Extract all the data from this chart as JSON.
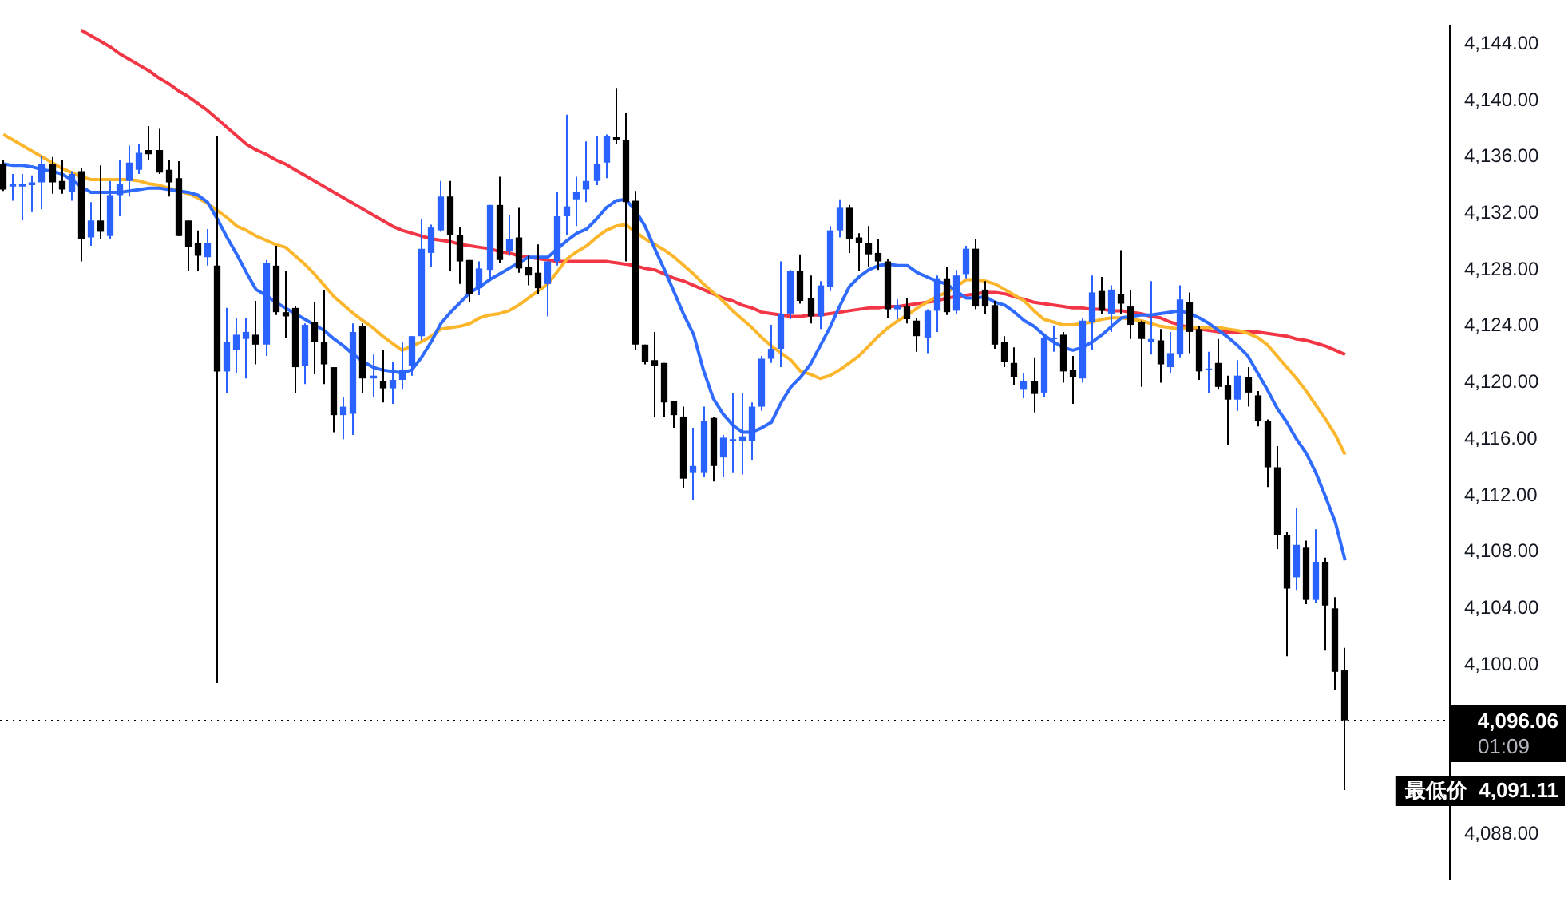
{
  "chart_data": {
    "type": "candlestick",
    "tick_labels": "y",
    "categories": [
      null,
      null,
      null,
      null,
      null,
      null,
      null,
      null,
      null,
      null,
      null,
      null,
      null,
      null,
      null,
      null,
      null,
      null,
      null,
      null,
      null,
      null,
      null,
      null,
      null,
      null,
      null,
      null,
      null,
      null,
      null,
      null,
      null,
      null,
      null,
      null,
      null,
      null,
      null,
      null,
      null,
      null,
      null,
      null,
      null,
      null,
      null,
      null,
      null,
      null,
      null,
      null,
      null,
      null,
      null,
      null,
      null,
      null,
      null,
      null,
      null,
      null,
      null,
      null,
      null,
      null,
      null,
      null,
      null,
      null,
      null,
      null,
      null,
      null,
      null,
      null,
      null,
      null,
      null,
      null,
      null,
      null,
      null,
      null,
      null,
      null,
      null,
      null,
      null,
      null,
      null,
      null,
      null,
      null,
      null,
      null,
      null,
      null,
      null,
      null,
      null,
      null,
      null,
      null,
      null,
      null,
      null,
      null,
      null,
      null,
      null,
      null,
      null,
      null,
      null,
      null,
      null,
      null,
      null,
      null,
      null,
      null,
      null,
      null,
      null,
      null,
      null,
      null,
      null,
      null,
      null,
      null,
      null,
      null,
      null,
      null,
      null,
      null,
      null
    ],
    "ohlc": [
      [
        4135.5,
        4135.8,
        4133.6,
        4133.7
      ],
      [
        4133.9,
        4134.8,
        4132.9,
        4134.1
      ],
      [
        4133.9,
        4134.8,
        4131.5,
        4134.1
      ],
      [
        4134.0,
        4134.7,
        4132.1,
        4134.2
      ],
      [
        4134.2,
        4136.1,
        4132.3,
        4135.5
      ],
      [
        4135.5,
        4136.0,
        4133.4,
        4134.2
      ],
      [
        4134.3,
        4135.8,
        4133.4,
        4133.7
      ],
      [
        4133.5,
        4135.0,
        4132.9,
        4134.8
      ],
      [
        4135.0,
        4135.2,
        4128.6,
        4130.2
      ],
      [
        4130.3,
        4132.8,
        4129.7,
        4131.5
      ],
      [
        4131.5,
        4135.4,
        4130.2,
        4130.7
      ],
      [
        4130.4,
        4134.3,
        4130.2,
        4133.3
      ],
      [
        4133.3,
        4135.8,
        4131.8,
        4134.1
      ],
      [
        4134.3,
        4136.8,
        4133.2,
        4135.6
      ],
      [
        4135.1,
        4136.9,
        4134.8,
        4136.3
      ],
      [
        4136.5,
        4138.2,
        4135.8,
        4136.2
      ],
      [
        4136.5,
        4138.0,
        4134.8,
        4134.9
      ],
      [
        4135.1,
        4135.8,
        4133.2,
        4134.2
      ],
      [
        4134.5,
        4135.7,
        4130.4,
        4130.4
      ],
      [
        4131.5,
        4131.5,
        4127.9,
        4129.6
      ],
      [
        4129.9,
        4130.8,
        4127.9,
        4129.0
      ],
      [
        4128.9,
        4130.9,
        4128.3,
        4129.9
      ],
      [
        4128.3,
        4137.5,
        4098.7,
        4120.8
      ],
      [
        4120.8,
        4125.3,
        4119.3,
        4122.9
      ],
      [
        4122.3,
        4124.6,
        4120.7,
        4123.4
      ],
      [
        4123.1,
        4124.6,
        4120.3,
        4123.6
      ],
      [
        4123.4,
        4125.8,
        4121.3,
        4122.7
      ],
      [
        4122.7,
        4128.7,
        4121.9,
        4128.5
      ],
      [
        4128.3,
        4129.7,
        4124.8,
        4125.0
      ],
      [
        4125.0,
        4127.9,
        4123.2,
        4124.7
      ],
      [
        4125.3,
        4125.4,
        4119.3,
        4121.1
      ],
      [
        4121.2,
        4124.2,
        4119.9,
        4124.1
      ],
      [
        4124.3,
        4125.7,
        4120.6,
        4122.9
      ],
      [
        4122.9,
        4126.6,
        4119.9,
        4121.3
      ],
      [
        4121.1,
        4121.1,
        4116.5,
        4117.7
      ],
      [
        4117.7,
        4119.0,
        4116.0,
        4118.3
      ],
      [
        4117.8,
        4124.2,
        4116.3,
        4123.6
      ],
      [
        4124.0,
        4124.2,
        4119.3,
        4120.3
      ],
      [
        4120.3,
        4122.0,
        4119.0,
        4120.5
      ],
      [
        4120.1,
        4122.3,
        4118.6,
        4119.6
      ],
      [
        4119.6,
        4121.5,
        4118.5,
        4120.2
      ],
      [
        4120.2,
        4122.9,
        4119.5,
        4120.9
      ],
      [
        4121.2,
        4123.3,
        4120.5,
        4123.3
      ],
      [
        4123.3,
        4131.6,
        4123.0,
        4129.5
      ],
      [
        4129.2,
        4131.2,
        4128.2,
        4131.0
      ],
      [
        4130.8,
        4134.3,
        4130.7,
        4133.2
      ],
      [
        4133.2,
        4134.3,
        4127.9,
        4130.5
      ],
      [
        4130.5,
        4131.0,
        4127.0,
        4128.6
      ],
      [
        4128.7,
        4128.7,
        4125.7,
        4126.3
      ],
      [
        4126.7,
        4128.6,
        4126.2,
        4128.1
      ],
      [
        4128.0,
        4132.6,
        4127.2,
        4132.6
      ],
      [
        4132.6,
        4134.6,
        4128.5,
        4128.7
      ],
      [
        4129.3,
        4131.9,
        4129.0,
        4130.2
      ],
      [
        4130.3,
        4132.4,
        4127.8,
        4128.1
      ],
      [
        4128.2,
        4129.0,
        4126.9,
        4127.6
      ],
      [
        4127.8,
        4129.8,
        4126.3,
        4126.7
      ],
      [
        4127.0,
        4128.6,
        4124.7,
        4128.6
      ],
      [
        4128.6,
        4133.5,
        4128.3,
        4131.8
      ],
      [
        4131.8,
        4139.0,
        4130.5,
        4132.5
      ],
      [
        4133.0,
        4134.6,
        4131.1,
        4133.5
      ],
      [
        4133.7,
        4137.1,
        4132.8,
        4134.3
      ],
      [
        4134.3,
        4137.5,
        4134.0,
        4135.5
      ],
      [
        4135.6,
        4137.6,
        4134.5,
        4137.5
      ],
      [
        4137.4,
        4140.9,
        4136.9,
        4137.2
      ],
      [
        4137.2,
        4139.1,
        4128.6,
        4132.8
      ],
      [
        4132.9,
        4133.6,
        4122.3,
        4122.7
      ],
      [
        4122.7,
        4122.7,
        4121.3,
        4121.5
      ],
      [
        4121.6,
        4123.6,
        4117.6,
        4121.2
      ],
      [
        4121.4,
        4121.4,
        4117.6,
        4118.6
      ],
      [
        4118.7,
        4118.7,
        4116.8,
        4117.7
      ],
      [
        4117.6,
        4118.3,
        4112.5,
        4113.2
      ],
      [
        4113.6,
        4116.8,
        4111.7,
        4114.1
      ],
      [
        4113.6,
        4118.3,
        4113.3,
        4117.3
      ],
      [
        4117.5,
        4117.6,
        4113.0,
        4114.1
      ],
      [
        4114.7,
        4116.3,
        4113.3,
        4116.1
      ],
      [
        4115.9,
        4119.3,
        4113.6,
        4116.0
      ],
      [
        4115.9,
        4119.3,
        4113.5,
        4116.2
      ],
      [
        4115.9,
        4118.6,
        4114.5,
        4118.3
      ],
      [
        4118.3,
        4121.9,
        4118.0,
        4121.7
      ],
      [
        4121.7,
        4124.1,
        4121.4,
        4122.4
      ],
      [
        4122.4,
        4128.6,
        4121.1,
        4124.9
      ],
      [
        4124.9,
        4128.0,
        4124.5,
        4127.9
      ],
      [
        4127.9,
        4129.1,
        4125.6,
        4125.8
      ],
      [
        4126.0,
        4127.6,
        4124.2,
        4124.7
      ],
      [
        4124.7,
        4127.2,
        4123.8,
        4126.9
      ],
      [
        4126.8,
        4131.1,
        4126.5,
        4130.8
      ],
      [
        4130.8,
        4133.0,
        4130.3,
        4132.4
      ],
      [
        4132.4,
        4132.6,
        4129.2,
        4130.2
      ],
      [
        4130.3,
        4130.6,
        4127.9,
        4129.9
      ],
      [
        4129.9,
        4131.1,
        4128.2,
        4129.1
      ],
      [
        4129.2,
        4130.2,
        4128.0,
        4128.6
      ],
      [
        4128.6,
        4128.8,
        4124.6,
        4125.2
      ],
      [
        4125.2,
        4125.9,
        4124.5,
        4125.5
      ],
      [
        4125.4,
        4126.0,
        4124.2,
        4124.5
      ],
      [
        4124.4,
        4124.6,
        4122.2,
        4123.3
      ],
      [
        4123.2,
        4125.2,
        4122.1,
        4125.1
      ],
      [
        4125.1,
        4127.6,
        4123.6,
        4127.4
      ],
      [
        4127.4,
        4128.2,
        4124.8,
        4125.0
      ],
      [
        4125.1,
        4128.0,
        4124.9,
        4127.6
      ],
      [
        4127.7,
        4129.7,
        4127.4,
        4129.5
      ],
      [
        4129.5,
        4130.2,
        4125.2,
        4125.4
      ],
      [
        4126.6,
        4127.2,
        4124.9,
        4125.4
      ],
      [
        4125.5,
        4125.8,
        4122.4,
        4122.7
      ],
      [
        4122.9,
        4123.3,
        4121.1,
        4121.5
      ],
      [
        4121.4,
        4122.5,
        4119.8,
        4120.4
      ],
      [
        4119.5,
        4120.7,
        4118.9,
        4120.1
      ],
      [
        4120.1,
        4121.8,
        4117.9,
        4119.2
      ],
      [
        4119.3,
        4123.4,
        4119.0,
        4123.2
      ],
      [
        4123.1,
        4124.0,
        4122.2,
        4123.2
      ],
      [
        4123.4,
        4123.6,
        4120.0,
        4120.8
      ],
      [
        4120.9,
        4121.9,
        4118.5,
        4120.4
      ],
      [
        4120.3,
        4124.6,
        4120.0,
        4124.4
      ],
      [
        4124.3,
        4127.6,
        4122.3,
        4126.4
      ],
      [
        4126.5,
        4127.5,
        4124.9,
        4125.1
      ],
      [
        4124.9,
        4126.9,
        4123.6,
        4126.6
      ],
      [
        4126.3,
        4129.4,
        4124.9,
        4125.6
      ],
      [
        4125.4,
        4126.6,
        4123.1,
        4124.1
      ],
      [
        4124.3,
        4124.4,
        4119.7,
        4123.1
      ],
      [
        4122.9,
        4127.2,
        4122.0,
        4123.1
      ],
      [
        4123.0,
        4123.8,
        4120.0,
        4121.3
      ],
      [
        4121.1,
        4123.6,
        4120.7,
        4122.1
      ],
      [
        4122.0,
        4126.9,
        4121.8,
        4125.9
      ],
      [
        4125.7,
        4126.4,
        4122.1,
        4123.6
      ],
      [
        4123.8,
        4124.0,
        4120.2,
        4120.8
      ],
      [
        4120.9,
        4122.2,
        4119.3,
        4121.0
      ],
      [
        4121.4,
        4123.1,
        4119.5,
        4119.7
      ],
      [
        4119.8,
        4120.5,
        4115.6,
        4118.8
      ],
      [
        4118.8,
        4121.6,
        4118.0,
        4120.5
      ],
      [
        4120.4,
        4121.1,
        4118.3,
        4119.3
      ],
      [
        4119.1,
        4119.4,
        4116.9,
        4117.3
      ],
      [
        4117.3,
        4117.4,
        4112.6,
        4114.0
      ],
      [
        4114.0,
        4115.5,
        4108.2,
        4109.2
      ],
      [
        4109.2,
        4109.4,
        4100.6,
        4105.4
      ],
      [
        4106.2,
        4111.1,
        4105.3,
        4108.5
      ],
      [
        4108.3,
        4108.8,
        4104.3,
        4104.6
      ],
      [
        4104.6,
        4109.6,
        4104.4,
        4107.3
      ],
      [
        4107.3,
        4107.6,
        4101.0,
        4104.2
      ],
      [
        4104.0,
        4104.8,
        4098.2,
        4099.5
      ],
      [
        4099.6,
        4101.2,
        4091.11,
        4096.06
      ]
    ],
    "colors": [
      "#000000",
      "#2962ff",
      "#2962ff",
      "#2962ff",
      "#2962ff",
      "#000000",
      "#000000",
      "#2962ff",
      "#000000",
      "#2962ff",
      "#000000",
      "#2962ff",
      "#2962ff",
      "#2962ff",
      "#2962ff",
      "#000000",
      "#000000",
      "#000000",
      "#000000",
      "#000000",
      "#000000",
      "#2962ff",
      "#000000",
      "#2962ff",
      "#2962ff",
      "#2962ff",
      "#000000",
      "#2962ff",
      "#000000",
      "#000000",
      "#000000",
      "#2962ff",
      "#000000",
      "#000000",
      "#000000",
      "#2962ff",
      "#2962ff",
      "#000000",
      "#2962ff",
      "#000000",
      "#2962ff",
      "#2962ff",
      "#2962ff",
      "#2962ff",
      "#2962ff",
      "#2962ff",
      "#000000",
      "#000000",
      "#000000",
      "#2962ff",
      "#2962ff",
      "#000000",
      "#2962ff",
      "#000000",
      "#000000",
      "#000000",
      "#2962ff",
      "#2962ff",
      "#2962ff",
      "#2962ff",
      "#2962ff",
      "#2962ff",
      "#2962ff",
      "#000000",
      "#000000",
      "#000000",
      "#000000",
      "#000000",
      "#000000",
      "#000000",
      "#000000",
      "#2962ff",
      "#2962ff",
      "#000000",
      "#2962ff",
      "#2962ff",
      "#2962ff",
      "#2962ff",
      "#2962ff",
      "#2962ff",
      "#2962ff",
      "#2962ff",
      "#000000",
      "#000000",
      "#2962ff",
      "#2962ff",
      "#2962ff",
      "#000000",
      "#000000",
      "#000000",
      "#000000",
      "#000000",
      "#2962ff",
      "#000000",
      "#000000",
      "#2962ff",
      "#2962ff",
      "#000000",
      "#2962ff",
      "#2962ff",
      "#000000",
      "#000000",
      "#000000",
      "#000000",
      "#000000",
      "#2962ff",
      "#000000",
      "#2962ff",
      "#2962ff",
      "#000000",
      "#000000",
      "#2962ff",
      "#2962ff",
      "#000000",
      "#2962ff",
      "#000000",
      "#000000",
      "#000000",
      "#2962ff",
      "#000000",
      "#2962ff",
      "#2962ff",
      "#000000",
      "#000000",
      "#2962ff",
      "#000000",
      "#000000",
      "#2962ff",
      "#000000",
      "#000000",
      "#000000",
      "#000000",
      "#000000",
      "#2962ff",
      "#000000",
      "#2962ff",
      "#000000",
      "#000000",
      "#000000"
    ],
    "series": [
      {
        "type": "line",
        "color": "#2f6bff",
        "values": [
          4135.5,
          4135.4,
          4135.4,
          4135.3,
          4135.1,
          4135.0,
          4134.8,
          4134.4,
          4133.9,
          4133.5,
          4133.5,
          4133.5,
          4133.5,
          4133.6,
          4133.7,
          4133.8,
          4133.8,
          4133.7,
          4133.6,
          4133.5,
          4133.3,
          4132.8,
          4131.6,
          4130.3,
          4129.1,
          4127.8,
          4126.6,
          4126.2,
          4125.7,
          4125.3,
          4124.9,
          4124.5,
          4124.1,
          4123.7,
          4123.1,
          4122.6,
          4122.0,
          4121.5,
          4121.1,
          4120.9,
          4120.8,
          4120.7,
          4120.9,
          4121.8,
          4122.9,
          4124.2,
          4125.0,
          4125.7,
          4126.4,
          4126.8,
          4127.3,
          4127.7,
          4128.1,
          4128.5,
          4128.9,
          4128.9,
          4128.9,
          4129.5,
          4130.1,
          4130.6,
          4130.9,
          4131.6,
          4132.4,
          4132.9,
          4133.0,
          4132.2,
          4131.1,
          4129.5,
          4128.0,
          4126.4,
          4124.8,
          4123.4,
          4120.9,
          4118.9,
          4117.8,
          4117.0,
          4116.5,
          4116.5,
          4116.8,
          4117.2,
          4118.6,
          4119.7,
          4120.4,
          4121.3,
          4122.6,
          4123.9,
          4125.4,
          4126.8,
          4127.5,
          4128.0,
          4128.3,
          4128.4,
          4128.3,
          4128.3,
          4127.8,
          4127.5,
          4127.2,
          4127.0,
          4126.5,
          4126.0,
          4126.0,
          4126.1,
          4125.7,
          4125.5,
          4125.0,
          4124.4,
          4124.0,
          4123.4,
          4122.9,
          4122.5,
          4122.3,
          4122.5,
          4122.9,
          4123.4,
          4124.0,
          4124.6,
          4124.7,
          4124.8,
          4124.8,
          4124.9,
          4125.0,
          4125.1,
          4124.9,
          4124.6,
          4124.2,
          4123.7,
          4123.2,
          4122.6,
          4121.9,
          4120.7,
          4119.5,
          4118.2,
          4117.2,
          4116.0,
          4115.0,
          4113.6,
          4111.9,
          4110.1,
          4107.4
        ]
      },
      {
        "type": "line",
        "color": "#fbb62c",
        "values": [
          4137.6,
          4137.2,
          4136.8,
          4136.4,
          4136.0,
          4135.6,
          4135.2,
          4134.9,
          4134.6,
          4134.4,
          4134.4,
          4134.4,
          4134.4,
          4134.4,
          4134.3,
          4134.1,
          4134.0,
          4133.8,
          4133.6,
          4133.4,
          4133.1,
          4132.7,
          4132.2,
          4131.7,
          4131.1,
          4130.8,
          4130.4,
          4130.1,
          4129.8,
          4129.6,
          4129.0,
          4128.4,
          4127.7,
          4126.9,
          4126.1,
          4125.5,
          4124.9,
          4124.4,
          4123.9,
          4123.3,
          4122.8,
          4122.3,
          4122.6,
          4122.9,
          4123.3,
          4123.8,
          4123.9,
          4124.0,
          4124.2,
          4124.6,
          4124.8,
          4124.9,
          4125.1,
          4125.5,
          4126.0,
          4126.5,
          4127.0,
          4127.9,
          4128.8,
          4129.3,
          4129.7,
          4130.3,
          4130.8,
          4131.1,
          4131.2,
          4130.7,
          4130.2,
          4129.8,
          4129.4,
          4128.9,
          4128.3,
          4127.7,
          4127.0,
          4126.4,
          4125.8,
          4125.1,
          4124.5,
          4123.9,
          4123.2,
          4122.6,
          4122.1,
          4121.6,
          4120.8,
          4120.6,
          4120.3,
          4120.5,
          4120.9,
          4121.4,
          4121.9,
          4122.6,
          4123.3,
          4123.9,
          4124.4,
          4124.8,
          4125.3,
          4125.7,
          4126.1,
          4126.4,
          4126.8,
          4127.3,
          4127.3,
          4127.2,
          4127.0,
          4126.6,
          4126.2,
          4125.8,
          4125.1,
          4124.5,
          4124.3,
          4124.1,
          4124.1,
          4124.2,
          4124.3,
          4124.5,
          4124.6,
          4124.6,
          4124.5,
          4124.4,
          4124.2,
          4124.0,
          4123.9,
          4123.8,
          4123.9,
          4123.9,
          4123.9,
          4123.9,
          4123.8,
          4123.7,
          4123.5,
          4123.2,
          4122.7,
          4121.9,
          4121.1,
          4120.3,
          4119.4,
          4118.4,
          4117.4,
          4116.3,
          4114.9
        ]
      },
      {
        "type": "line",
        "color": "#f23645",
        "values": [
          null,
          null,
          null,
          null,
          null,
          null,
          null,
          null,
          4145.0,
          4144.6,
          4144.2,
          4143.8,
          4143.3,
          4142.9,
          4142.5,
          4142.1,
          4141.6,
          4141.2,
          4140.7,
          4140.3,
          4139.8,
          4139.3,
          4138.7,
          4138.1,
          4137.5,
          4136.9,
          4136.5,
          4136.2,
          4135.8,
          4135.5,
          4135.1,
          4134.7,
          4134.3,
          4133.9,
          4133.5,
          4133.1,
          4132.7,
          4132.3,
          4131.9,
          4131.5,
          4131.1,
          4130.8,
          4130.6,
          4130.4,
          4130.2,
          4130.1,
          4130.0,
          4129.8,
          4129.7,
          4129.6,
          4129.5,
          4129.3,
          4129.2,
          4129.0,
          4128.9,
          4128.8,
          4128.7,
          4128.6,
          4128.6,
          4128.6,
          4128.6,
          4128.6,
          4128.6,
          4128.5,
          4128.4,
          4128.3,
          4128.1,
          4128.0,
          4127.7,
          4127.4,
          4127.2,
          4126.9,
          4126.6,
          4126.3,
          4126.0,
          4125.8,
          4125.5,
          4125.3,
          4125.0,
          4124.9,
          4124.8,
          4124.7,
          4124.7,
          4124.8,
          4124.8,
          4124.9,
          4125.0,
          4125.1,
          4125.2,
          4125.3,
          4125.3,
          4125.4,
          4125.4,
          4125.5,
          4125.6,
          4125.7,
          4125.8,
          4126.0,
          4126.1,
          4126.2,
          4126.3,
          4126.4,
          4126.4,
          4126.3,
          4126.1,
          4125.9,
          4125.7,
          4125.6,
          4125.5,
          4125.4,
          4125.3,
          4125.3,
          4125.2,
          4125.2,
          4125.1,
          4125.1,
          4125.0,
          4124.9,
          4124.7,
          4124.6,
          4124.3,
          4124.1,
          4123.9,
          4123.8,
          4123.7,
          4123.6,
          4123.6,
          4123.6,
          4123.6,
          4123.6,
          4123.5,
          4123.4,
          4123.3,
          4123.1,
          4123.0,
          4122.8,
          4122.6,
          4122.3,
          4122.0
        ]
      }
    ],
    "ylim": [
      4084.8,
      4145.3
    ],
    "yticks": [
      {
        "value": 4088,
        "label": "4,088.00"
      },
      {
        "value": 4100,
        "label": "4,100.00"
      },
      {
        "value": 4104,
        "label": "4,104.00"
      },
      {
        "value": 4108,
        "label": "4,108.00"
      },
      {
        "value": 4112,
        "label": "4,112.00"
      },
      {
        "value": 4116,
        "label": "4,116.00"
      },
      {
        "value": 4120,
        "label": "4,120.00"
      },
      {
        "value": 4124,
        "label": "4,124.00"
      },
      {
        "value": 4128,
        "label": "4,128.00"
      },
      {
        "value": 4132,
        "label": "4,132.00"
      },
      {
        "value": 4136,
        "label": "4,136.00"
      },
      {
        "value": 4140,
        "label": "4,140.00"
      },
      {
        "value": 4144,
        "label": "4,144.00"
      }
    ],
    "ref_lines": [
      {
        "axis": "y",
        "value": 4096.06,
        "label": "4,096.06",
        "color": "#000000",
        "line_style": "dotted"
      }
    ],
    "annotations": [
      "01:09",
      "最低价  4,091.11"
    ]
  }
}
